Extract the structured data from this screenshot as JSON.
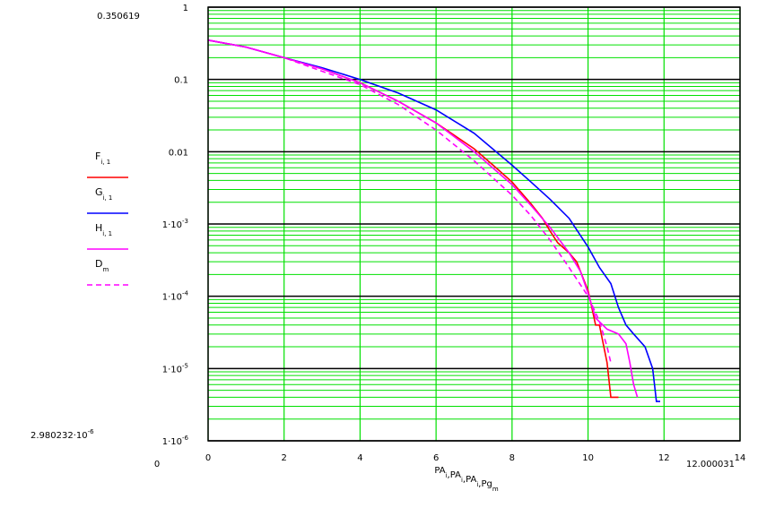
{
  "chart_data": {
    "type": "line",
    "xlabel_parts": [
      {
        "base": "PA",
        "sub": "i"
      },
      {
        "base": ",PA",
        "sub": "i"
      },
      {
        "base": ",PA",
        "sub": "i"
      },
      {
        "base": ",Pg",
        "sub": "m"
      }
    ],
    "xlim": [
      0,
      14
    ],
    "ylim": [
      1e-06,
      1
    ],
    "y_scale": "log",
    "corner_labels": {
      "y_top": "0.350619",
      "y_bottom": "2.980232·10",
      "y_bottom_exp": "-6",
      "x_left": "0",
      "x_right": "12.000031"
    },
    "x_ticks": [
      0,
      2,
      4,
      6,
      8,
      10,
      12,
      14
    ],
    "x_tick_labels": [
      "0",
      "2",
      "4",
      "6",
      "8",
      "10",
      "12",
      "14"
    ],
    "y_ticks": [
      {
        "value": 1,
        "label": "1",
        "exp": ""
      },
      {
        "value": 0.1,
        "label": "0.1",
        "exp": ""
      },
      {
        "value": 0.01,
        "label": "0.01",
        "exp": ""
      },
      {
        "value": 0.001,
        "label": "1·10",
        "exp": "-3"
      },
      {
        "value": 0.0001,
        "label": "1·10",
        "exp": "-4"
      },
      {
        "value": 1e-05,
        "label": "1·10",
        "exp": "-5"
      },
      {
        "value": 1e-06,
        "label": "1·10",
        "exp": "-6"
      }
    ],
    "grid": true,
    "grid_color": "#00e000",
    "major_grid_color": "#000000",
    "legend_placement": "left",
    "legend": [
      {
        "base": "F",
        "sub": "i, 1",
        "color": "#ff0000",
        "dash": "solid"
      },
      {
        "base": "G",
        "sub": "i, 1",
        "color": "#0000ff",
        "dash": "solid"
      },
      {
        "base": "H",
        "sub": "i, 1",
        "color": "#ff00ff",
        "dash": "solid"
      },
      {
        "base": "D",
        "sub": "m",
        "color": "#ff00ff",
        "dash": "dashed"
      }
    ],
    "series": [
      {
        "color": "#ff0000",
        "dash": "solid",
        "x": [
          0,
          1,
          2,
          3,
          4,
          5,
          6,
          7,
          7.5,
          8,
          8.5,
          8.8,
          9,
          9.2,
          9.5,
          9.7,
          10,
          10.1,
          10.2,
          10.3,
          10.4,
          10.5,
          10.6,
          10.8
        ],
        "y": [
          0.35,
          0.28,
          0.2,
          0.14,
          0.09,
          0.05,
          0.025,
          0.011,
          0.0065,
          0.0038,
          0.0019,
          0.0012,
          0.0008,
          0.00055,
          0.0004,
          0.0003,
          0.00012,
          7e-05,
          4e-05,
          4e-05,
          2.2e-05,
          1.2e-05,
          4e-06,
          4e-06
        ]
      },
      {
        "color": "#0000ff",
        "dash": "solid",
        "x": [
          0,
          1,
          2,
          3,
          4,
          5,
          6,
          7,
          8,
          8.5,
          9,
          9.5,
          10,
          10.3,
          10.6,
          10.8,
          11,
          11.2,
          11.5,
          11.7,
          11.8,
          11.9
        ],
        "y": [
          0.35,
          0.28,
          0.2,
          0.145,
          0.1,
          0.065,
          0.038,
          0.018,
          0.0065,
          0.0038,
          0.0022,
          0.0012,
          0.00048,
          0.00025,
          0.00015,
          7e-05,
          4e-05,
          3e-05,
          2e-05,
          1e-05,
          3.5e-06,
          3.5e-06
        ]
      },
      {
        "color": "#ff00ff",
        "dash": "solid",
        "x": [
          0,
          1,
          2,
          3,
          4,
          5,
          6,
          7,
          8,
          8.5,
          9,
          9.5,
          9.8,
          10,
          10.2,
          10.5,
          10.8,
          11,
          11.1,
          11.2,
          11.3
        ],
        "y": [
          0.35,
          0.28,
          0.2,
          0.14,
          0.09,
          0.05,
          0.025,
          0.01,
          0.0035,
          0.0018,
          0.0009,
          0.0004,
          0.00022,
          0.00011,
          5e-05,
          3.5e-05,
          3e-05,
          2.2e-05,
          1.2e-05,
          6e-06,
          4e-06
        ]
      },
      {
        "color": "#ff00ff",
        "dash": "dashed",
        "x": [
          0,
          1,
          2,
          3,
          4,
          5,
          6,
          7,
          8,
          8.5,
          9,
          9.5,
          10,
          10.3,
          10.5,
          10.6
        ],
        "y": [
          0.35,
          0.28,
          0.2,
          0.13,
          0.085,
          0.045,
          0.02,
          0.0075,
          0.0025,
          0.0013,
          0.0006,
          0.00025,
          0.0001,
          4.5e-05,
          2e-05,
          1.2e-05
        ]
      }
    ]
  }
}
